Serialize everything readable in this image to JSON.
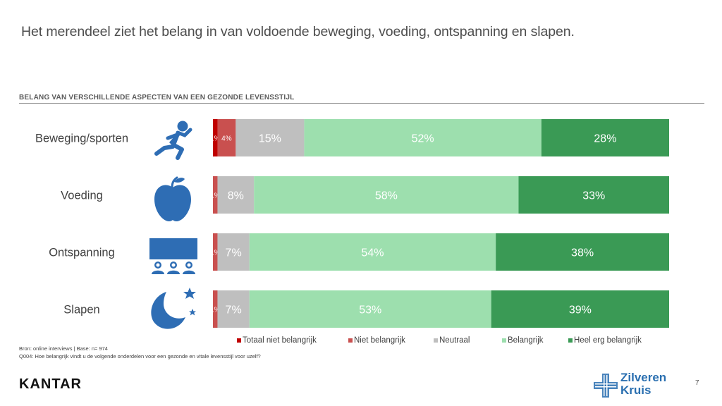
{
  "slide": {
    "title": "Het merendeel ziet het belang in van voldoende beweging, voeding, ontspanning en slapen.",
    "section_title": "BELANG VAN VERSCHILLENDE ASPECTEN VAN EEN GEZONDE LEVENSSTIJL",
    "source": "Bron: online interviews | Base: n= 974",
    "question": "Q004: Hoe belangrijk vindt u de volgende onderdelen voor een gezonde en vitale levensstijl voor uzelf?",
    "kantar_logo": "KANTAR",
    "zk_logo_line1": "Zilveren",
    "zk_logo_line2": "Kruis",
    "page_number": "7"
  },
  "colors": {
    "totaal_niet": "#c00000",
    "niet": "#c9504f",
    "neutraal": "#bfbfbf",
    "belangrijk": "#9ddfae",
    "heel_erg": "#3a9a55",
    "icon_blue": "#2e6db4"
  },
  "chart_data": {
    "type": "bar",
    "orientation": "horizontal",
    "stacked": true,
    "normalized_to": 100,
    "categories": [
      "Beweging/sporten",
      "Voeding",
      "Ontspanning",
      "Slapen"
    ],
    "category_icons": [
      "running-person-icon",
      "apple-icon",
      "audience-icon",
      "moon-stars-icon"
    ],
    "series": [
      {
        "name": "Totaal niet belangrijk",
        "color": "#c00000",
        "values": [
          1,
          0,
          0,
          0
        ],
        "labels": [
          "1%",
          "",
          "",
          ""
        ]
      },
      {
        "name": "Niet belangrijk",
        "color": "#c9504f",
        "values": [
          4,
          1,
          1,
          1
        ],
        "labels": [
          "4%",
          "1%",
          "1%",
          "1%"
        ]
      },
      {
        "name": "Neutraal",
        "color": "#bfbfbf",
        "values": [
          15,
          8,
          7,
          7
        ],
        "labels": [
          "15%",
          "8%",
          "7%",
          "7%"
        ]
      },
      {
        "name": "Belangrijk",
        "color": "#9ddfae",
        "values": [
          52,
          58,
          54,
          53
        ],
        "labels": [
          "52%",
          "58%",
          "54%",
          "53%"
        ]
      },
      {
        "name": "Heel erg belangrijk",
        "color": "#3a9a55",
        "values": [
          28,
          33,
          38,
          39
        ],
        "labels": [
          "28%",
          "33%",
          "38%",
          "39%"
        ]
      }
    ],
    "legend_position": "bottom",
    "grid": false
  }
}
